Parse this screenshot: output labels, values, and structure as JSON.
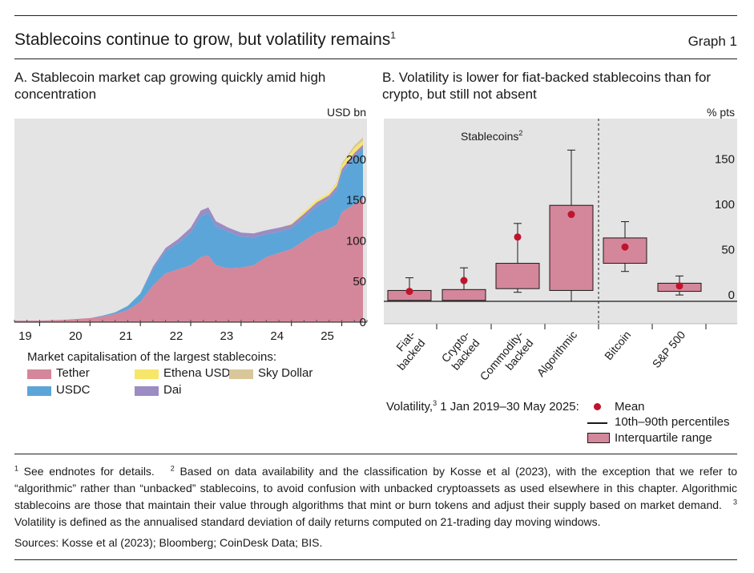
{
  "header": {
    "title": "Stablecoins continue to grow, but volatility remains",
    "title_note": "1",
    "graph_label": "Graph 1"
  },
  "panel_a": {
    "title": "A. Stablecoin market cap growing quickly amid high concentration",
    "unit": "USD bn",
    "legend_heading": "Market capitalisation of the largest stablecoins:",
    "legend": [
      {
        "label": "Tether",
        "color": "#d4879a"
      },
      {
        "label": "Ethena USDe",
        "color": "#f7e66a"
      },
      {
        "label": "Sky Dollar",
        "color": "#d9c79a"
      },
      {
        "label": "USDC",
        "color": "#5ba5d9"
      },
      {
        "label": "Dai",
        "color": "#9b8cc4"
      }
    ]
  },
  "panel_b": {
    "title": "B. Volatility is lower for fiat-backed stablecoins than for crypto, but still not absent",
    "unit": "% pts",
    "group_label": "Stablecoins",
    "group_note": "2",
    "legend_prefix": "Volatility,",
    "legend_prefix_note": "3",
    "legend_period": "1 Jan 2019–30 May 2025:",
    "legend_items": [
      "Mean",
      "10th–90th percentiles",
      "Interquartile range"
    ]
  },
  "footnotes": [
    {
      "num": "1",
      "text": "See endnotes for details."
    },
    {
      "num": "2",
      "text": "Based on data availability and the classification by Kosse et al (2023), with the exception that we refer to “algorithmic” rather than “unbacked” stablecoins, to avoid confusion with unbacked cryptoassets as used elsewhere in this chapter. Algorithmic stablecoins are those that maintain their value through algorithms that mint or burn tokens and adjust their supply based on market demand."
    },
    {
      "num": "3",
      "text": "Volatility is defined as the annualised standard deviation of daily returns computed on 21-trading day moving windows."
    }
  ],
  "sources": "Sources: Kosse et al (2023); Bloomberg; CoinDesk Data; BIS.",
  "chart_data": [
    {
      "type": "area",
      "title": "A. Stablecoin market cap growing quickly amid high concentration",
      "ylabel": "USD bn",
      "stacked": true,
      "ylim": [
        0,
        250
      ],
      "yticks": [
        0,
        50,
        100,
        150,
        200
      ],
      "xlim": [
        2018.5,
        2025.5
      ],
      "xticks": [
        2019,
        2020,
        2021,
        2022,
        2023,
        2024,
        2025
      ],
      "xtick_labels": [
        "19",
        "20",
        "21",
        "22",
        "23",
        "24",
        "25"
      ],
      "grid": false,
      "x": [
        2018.5,
        2019.0,
        2019.5,
        2020.0,
        2020.25,
        2020.5,
        2020.75,
        2021.0,
        2021.25,
        2021.5,
        2021.75,
        2022.0,
        2022.2,
        2022.35,
        2022.5,
        2022.75,
        2023.0,
        2023.25,
        2023.5,
        2023.75,
        2024.0,
        2024.25,
        2024.5,
        2024.75,
        2024.9,
        2025.0,
        2025.25,
        2025.42
      ],
      "series": [
        {
          "name": "Tether",
          "color": "#d4879a",
          "values": [
            2,
            2,
            3,
            5,
            7,
            10,
            15,
            25,
            45,
            60,
            65,
            70,
            80,
            82,
            70,
            66,
            67,
            70,
            80,
            85,
            90,
            100,
            110,
            115,
            120,
            135,
            145,
            152
          ]
        },
        {
          "name": "USDC",
          "color": "#5ba5d9",
          "values": [
            0,
            0,
            0,
            0,
            1,
            2,
            5,
            10,
            20,
            27,
            32,
            40,
            50,
            52,
            48,
            45,
            38,
            34,
            28,
            26,
            25,
            28,
            32,
            36,
            42,
            48,
            58,
            61
          ]
        },
        {
          "name": "Dai",
          "color": "#9b8cc4",
          "values": [
            0,
            0,
            0,
            0,
            0,
            0,
            0,
            0,
            3,
            4,
            5,
            6,
            7,
            7,
            6,
            5,
            5,
            5,
            5,
            5,
            5,
            5,
            5,
            5,
            5,
            5,
            5,
            5
          ]
        },
        {
          "name": "Ethena USDe",
          "color": "#f7e66a",
          "values": [
            0,
            0,
            0,
            0,
            0,
            0,
            0,
            0,
            0,
            0,
            0,
            0,
            0,
            0,
            0,
            0,
            0,
            0,
            0,
            0,
            1,
            3,
            3,
            3,
            4,
            5,
            6,
            5
          ]
        },
        {
          "name": "Sky Dollar",
          "color": "#d9c79a",
          "values": [
            0,
            0,
            0,
            0,
            0,
            0,
            0,
            0,
            0,
            0,
            0,
            0,
            0,
            0,
            0,
            0,
            0,
            0,
            0,
            0,
            0,
            0,
            0,
            0,
            1,
            2,
            3,
            4
          ]
        }
      ]
    },
    {
      "type": "box",
      "title": "B. Volatility is lower for fiat-backed stablecoins than for crypto, but still not absent",
      "ylabel": "% pts",
      "ylim": [
        -30,
        200
      ],
      "yticks": [
        0,
        50,
        100,
        150
      ],
      "grid": false,
      "categories": [
        "Fiat-backed",
        "Crypto-backed",
        "Commodity-backed",
        "Algorithmic",
        "Bitcoin",
        "S&P 500"
      ],
      "groups": [
        {
          "label": "Stablecoins",
          "categories": [
            "Fiat-backed",
            "Crypto-backed",
            "Commodity-backed",
            "Algorithmic"
          ]
        }
      ],
      "series": [
        {
          "name": "Mean",
          "values": [
            11,
            23,
            71,
            96,
            60,
            17
          ]
        },
        {
          "name": "10th–90th percentiles",
          "values": [
            [
              0,
              26
            ],
            [
              0,
              37
            ],
            [
              10,
              86
            ],
            [
              0,
              167
            ],
            [
              33,
              88
            ],
            [
              7,
              28
            ]
          ]
        },
        {
          "name": "Interquartile range",
          "values": [
            [
              1,
              12
            ],
            [
              1,
              13
            ],
            [
              14,
              42
            ],
            [
              12,
              106
            ],
            [
              42,
              70
            ],
            [
              11,
              20
            ]
          ]
        }
      ]
    }
  ]
}
